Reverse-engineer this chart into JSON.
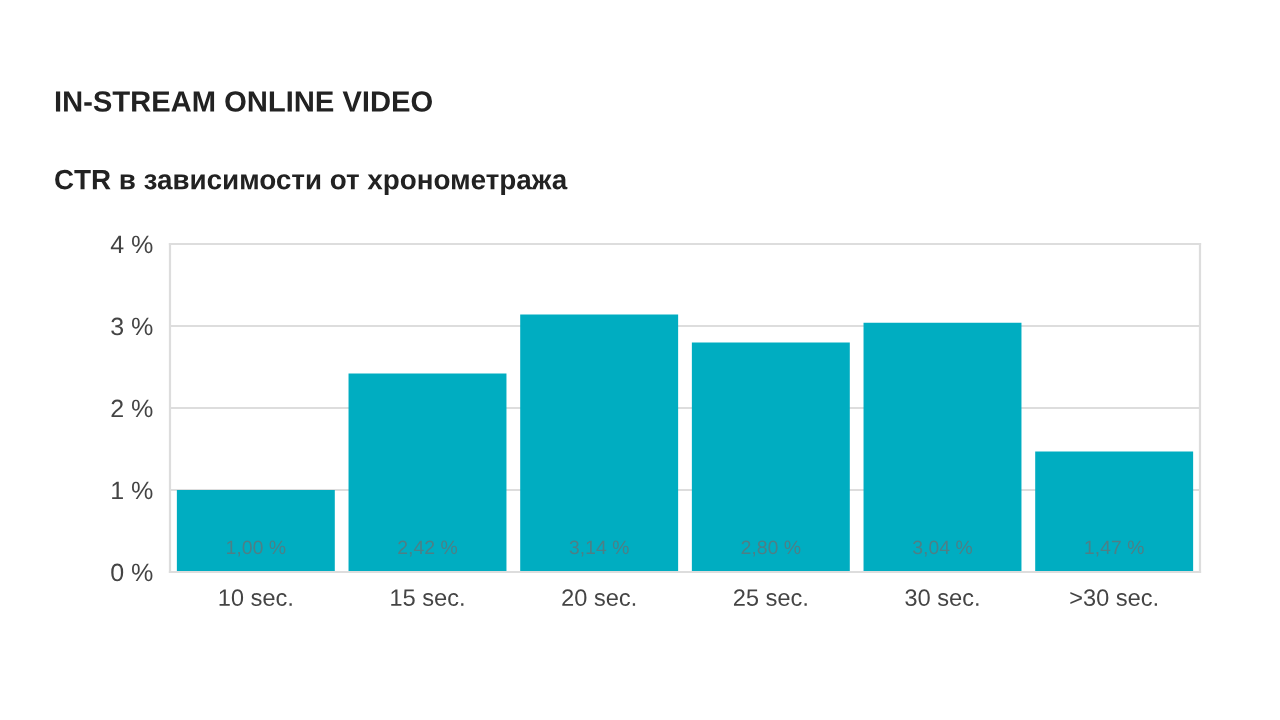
{
  "chart_data": {
    "type": "bar",
    "title": "IN-STREAM ONLINE VIDEO",
    "subtitle": "CTR в зависимости от хронометража",
    "categories": [
      "10 sec.",
      "15 sec.",
      "20 sec.",
      "25 sec.",
      "30 sec.",
      ">30 sec."
    ],
    "values": [
      1.0,
      2.42,
      3.14,
      2.8,
      3.04,
      1.47
    ],
    "value_labels": [
      "1,00 %",
      "2,42 %",
      "3,14 %",
      "2,80 %",
      "3,04 %",
      "1,47 %"
    ],
    "color": "#00adc1",
    "ylim": [
      0,
      4
    ],
    "yticks": [
      {
        "value": 0,
        "label": "0 %"
      },
      {
        "value": 1,
        "label": "1 %"
      },
      {
        "value": 2,
        "label": "2 %"
      },
      {
        "value": 3,
        "label": "3 %"
      },
      {
        "value": 4,
        "label": "4 %"
      }
    ],
    "grid": "y"
  }
}
